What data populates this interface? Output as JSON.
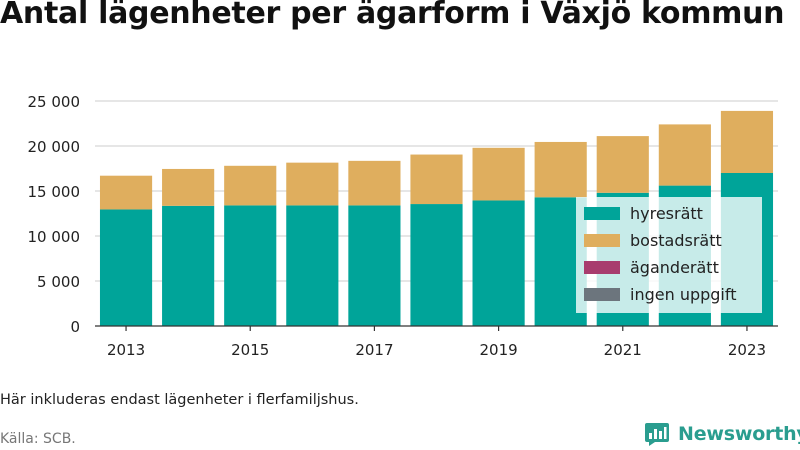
{
  "title": "Antal lägenheter per ägarform i Växjö kommun",
  "note": "Här inkluderas endast lägenheter i flerfamiljshus.",
  "source": "Källa: SCB.",
  "brand": {
    "name": "Newsworthy",
    "icon": "bar-chart-logo-icon"
  },
  "chart_data": {
    "type": "bar",
    "stacked": true,
    "categories": [
      "2013",
      "2014",
      "2015",
      "2016",
      "2017",
      "2018",
      "2019",
      "2020",
      "2021",
      "2022",
      "2023"
    ],
    "x_tick_labels": [
      "2013",
      "",
      "2015",
      "",
      "2017",
      "",
      "2019",
      "",
      "2021",
      "",
      "2023"
    ],
    "y_ticks": [
      0,
      5000,
      10000,
      15000,
      20000,
      25000
    ],
    "y_tick_labels": [
      "0",
      "5 000",
      "10 000",
      "15 000",
      "20 000",
      "25 000"
    ],
    "ylim": [
      0,
      27500
    ],
    "grid": true,
    "legend_position": "bottom-right",
    "series": [
      {
        "name": "hyresrätt",
        "color": "#00a499",
        "values": [
          12950,
          13350,
          13400,
          13400,
          13400,
          13550,
          13950,
          14300,
          14800,
          15600,
          17000
        ]
      },
      {
        "name": "bostadsrätt",
        "color": "#dfae5e",
        "values": [
          3750,
          4100,
          4400,
          4750,
          4950,
          5500,
          5850,
          6150,
          6300,
          6800,
          6900
        ]
      },
      {
        "name": "äganderätt",
        "color": "#a83c6e",
        "values": [
          0,
          0,
          0,
          0,
          0,
          0,
          0,
          0,
          0,
          0,
          0
        ]
      },
      {
        "name": "ingen uppgift",
        "color": "#6c757d",
        "values": [
          0,
          0,
          0,
          0,
          0,
          0,
          0,
          0,
          0,
          0,
          0
        ]
      }
    ]
  }
}
